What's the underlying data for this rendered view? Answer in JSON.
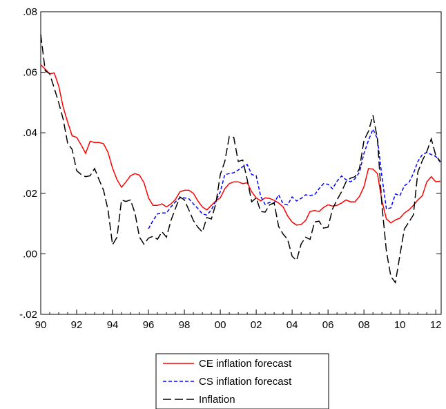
{
  "chart_data": {
    "type": "line",
    "title": "",
    "xlabel": "",
    "ylabel": "",
    "xlim": [
      1990,
      2012.3
    ],
    "ylim": [
      -0.02,
      0.08
    ],
    "x_ticks": [
      1990,
      1992,
      1994,
      1996,
      1998,
      2000,
      2002,
      2004,
      2006,
      2008,
      2010,
      2012
    ],
    "x_tick_labels": [
      "90",
      "92",
      "94",
      "96",
      "98",
      "00",
      "02",
      "04",
      "06",
      "08",
      "10",
      "12"
    ],
    "y_ticks": [
      -0.02,
      0.0,
      0.02,
      0.04,
      0.06,
      0.08
    ],
    "y_tick_labels": [
      "-.02",
      ".00",
      ".02",
      ".04",
      ".06",
      ".08"
    ],
    "grid": false,
    "legend_position": "bottom-center",
    "series": [
      {
        "name": "CE inflation forecast",
        "color": "#ff0000",
        "dash": "solid",
        "points": [
          [
            1990.0,
            0.0625
          ],
          [
            1990.25,
            0.061
          ],
          [
            1990.5,
            0.0595
          ],
          [
            1990.75,
            0.0598
          ],
          [
            1991.0,
            0.0555
          ],
          [
            1991.25,
            0.0485
          ],
          [
            1991.5,
            0.0435
          ],
          [
            1991.75,
            0.039
          ],
          [
            1992.0,
            0.0385
          ],
          [
            1992.25,
            0.036
          ],
          [
            1992.5,
            0.0332
          ],
          [
            1992.75,
            0.0372
          ],
          [
            1993.0,
            0.0368
          ],
          [
            1993.25,
            0.0368
          ],
          [
            1993.5,
            0.0364
          ],
          [
            1993.75,
            0.0335
          ],
          [
            1994.0,
            0.0283
          ],
          [
            1994.25,
            0.0245
          ],
          [
            1994.5,
            0.022
          ],
          [
            1994.75,
            0.0238
          ],
          [
            1995.0,
            0.0258
          ],
          [
            1995.25,
            0.0265
          ],
          [
            1995.5,
            0.026
          ],
          [
            1995.75,
            0.0235
          ],
          [
            1996.0,
            0.0185
          ],
          [
            1996.25,
            0.016
          ],
          [
            1996.5,
            0.016
          ],
          [
            1996.75,
            0.0165
          ],
          [
            1997.0,
            0.0155
          ],
          [
            1997.25,
            0.0165
          ],
          [
            1997.5,
            0.018
          ],
          [
            1997.75,
            0.0205
          ],
          [
            1998.0,
            0.021
          ],
          [
            1998.25,
            0.021
          ],
          [
            1998.5,
            0.02
          ],
          [
            1998.75,
            0.0175
          ],
          [
            1999.0,
            0.0155
          ],
          [
            1999.25,
            0.0145
          ],
          [
            1999.5,
            0.016
          ],
          [
            1999.75,
            0.0175
          ],
          [
            2000.0,
            0.0185
          ],
          [
            2000.25,
            0.0215
          ],
          [
            2000.5,
            0.0232
          ],
          [
            2000.75,
            0.0238
          ],
          [
            2001.0,
            0.0238
          ],
          [
            2001.25,
            0.0232
          ],
          [
            2001.5,
            0.0235
          ],
          [
            2001.75,
            0.0205
          ],
          [
            2002.0,
            0.0185
          ],
          [
            2002.25,
            0.0175
          ],
          [
            2002.5,
            0.0185
          ],
          [
            2002.75,
            0.0183
          ],
          [
            2003.0,
            0.0177
          ],
          [
            2003.25,
            0.0168
          ],
          [
            2003.5,
            0.0155
          ],
          [
            2003.75,
            0.0125
          ],
          [
            2004.0,
            0.0105
          ],
          [
            2004.25,
            0.0095
          ],
          [
            2004.5,
            0.0097
          ],
          [
            2004.75,
            0.011
          ],
          [
            2005.0,
            0.014
          ],
          [
            2005.25,
            0.0143
          ],
          [
            2005.5,
            0.014
          ],
          [
            2005.75,
            0.0153
          ],
          [
            2006.0,
            0.0162
          ],
          [
            2006.25,
            0.0158
          ],
          [
            2006.5,
            0.016
          ],
          [
            2006.75,
            0.0168
          ],
          [
            2007.0,
            0.0178
          ],
          [
            2007.25,
            0.0172
          ],
          [
            2007.5,
            0.0172
          ],
          [
            2007.75,
            0.019
          ],
          [
            2008.0,
            0.0222
          ],
          [
            2008.25,
            0.0282
          ],
          [
            2008.5,
            0.028
          ],
          [
            2008.75,
            0.0265
          ],
          [
            2009.0,
            0.0175
          ],
          [
            2009.25,
            0.0115
          ],
          [
            2009.5,
            0.0102
          ],
          [
            2009.75,
            0.0112
          ],
          [
            2010.0,
            0.0118
          ],
          [
            2010.25,
            0.0135
          ],
          [
            2010.5,
            0.0145
          ],
          [
            2010.75,
            0.016
          ],
          [
            2011.0,
            0.0178
          ],
          [
            2011.25,
            0.0192
          ],
          [
            2011.5,
            0.0238
          ],
          [
            2011.75,
            0.0255
          ],
          [
            2012.0,
            0.0238
          ],
          [
            2012.25,
            0.024
          ]
        ]
      },
      {
        "name": "CS inflation forecast",
        "color": "#0000ff",
        "dash": "short",
        "points": [
          [
            1996.0,
            0.0083
          ],
          [
            1996.25,
            0.011
          ],
          [
            1996.5,
            0.0132
          ],
          [
            1996.75,
            0.0135
          ],
          [
            1997.0,
            0.0135
          ],
          [
            1997.25,
            0.0155
          ],
          [
            1997.5,
            0.0172
          ],
          [
            1997.75,
            0.0185
          ],
          [
            1998.0,
            0.0185
          ],
          [
            1998.25,
            0.0182
          ],
          [
            1998.5,
            0.0165
          ],
          [
            1998.75,
            0.015
          ],
          [
            1999.0,
            0.0132
          ],
          [
            1999.25,
            0.0128
          ],
          [
            1999.5,
            0.0145
          ],
          [
            1999.75,
            0.0175
          ],
          [
            2000.0,
            0.0205
          ],
          [
            2000.25,
            0.0262
          ],
          [
            2000.5,
            0.0265
          ],
          [
            2000.75,
            0.0268
          ],
          [
            2001.0,
            0.0277
          ],
          [
            2001.25,
            0.0288
          ],
          [
            2001.5,
            0.0295
          ],
          [
            2001.75,
            0.0262
          ],
          [
            2002.0,
            0.0258
          ],
          [
            2002.25,
            0.019
          ],
          [
            2002.5,
            0.0163
          ],
          [
            2002.75,
            0.017
          ],
          [
            2003.0,
            0.0168
          ],
          [
            2003.25,
            0.0195
          ],
          [
            2003.5,
            0.0165
          ],
          [
            2003.75,
            0.0162
          ],
          [
            2004.0,
            0.0188
          ],
          [
            2004.25,
            0.0175
          ],
          [
            2004.5,
            0.0183
          ],
          [
            2004.75,
            0.0195
          ],
          [
            2005.0,
            0.0193
          ],
          [
            2005.25,
            0.0195
          ],
          [
            2005.5,
            0.0215
          ],
          [
            2005.75,
            0.0232
          ],
          [
            2006.0,
            0.023
          ],
          [
            2006.25,
            0.0215
          ],
          [
            2006.5,
            0.024
          ],
          [
            2006.75,
            0.0257
          ],
          [
            2007.0,
            0.0245
          ],
          [
            2007.25,
            0.0238
          ],
          [
            2007.5,
            0.0248
          ],
          [
            2007.75,
            0.027
          ],
          [
            2008.0,
            0.0332
          ],
          [
            2008.25,
            0.0375
          ],
          [
            2008.5,
            0.0412
          ],
          [
            2008.75,
            0.038
          ],
          [
            2009.0,
            0.0255
          ],
          [
            2009.25,
            0.0148
          ],
          [
            2009.5,
            0.0152
          ],
          [
            2009.75,
            0.0198
          ],
          [
            2010.0,
            0.0192
          ],
          [
            2010.25,
            0.0225
          ],
          [
            2010.5,
            0.0235
          ],
          [
            2010.75,
            0.0265
          ],
          [
            2011.0,
            0.0305
          ],
          [
            2011.25,
            0.0328
          ],
          [
            2011.5,
            0.0335
          ],
          [
            2011.75,
            0.0328
          ],
          [
            2012.0,
            0.0322
          ],
          [
            2012.25,
            0.0303
          ]
        ]
      },
      {
        "name": "Inflation",
        "color": "#000000",
        "dash": "long",
        "points": [
          [
            1990.0,
            0.0725
          ],
          [
            1990.25,
            0.0605
          ],
          [
            1990.5,
            0.0595
          ],
          [
            1990.75,
            0.0548
          ],
          [
            1991.0,
            0.05
          ],
          [
            1991.25,
            0.0445
          ],
          [
            1991.5,
            0.0365
          ],
          [
            1991.75,
            0.0345
          ],
          [
            1992.0,
            0.0275
          ],
          [
            1992.25,
            0.0262
          ],
          [
            1992.5,
            0.0255
          ],
          [
            1992.75,
            0.0258
          ],
          [
            1993.0,
            0.0282
          ],
          [
            1993.25,
            0.0245
          ],
          [
            1993.5,
            0.021
          ],
          [
            1993.75,
            0.0145
          ],
          [
            1994.0,
            0.003
          ],
          [
            1994.25,
            0.0055
          ],
          [
            1994.5,
            0.0178
          ],
          [
            1994.75,
            0.0173
          ],
          [
            1995.0,
            0.0178
          ],
          [
            1995.25,
            0.0135
          ],
          [
            1995.5,
            0.0055
          ],
          [
            1995.75,
            0.0032
          ],
          [
            1996.0,
            0.0052
          ],
          [
            1996.25,
            0.0058
          ],
          [
            1996.5,
            0.0048
          ],
          [
            1996.75,
            0.0073
          ],
          [
            1997.0,
            0.0055
          ],
          [
            1997.25,
            0.011
          ],
          [
            1997.5,
            0.015
          ],
          [
            1997.75,
            0.0188
          ],
          [
            1998.0,
            0.0178
          ],
          [
            1998.25,
            0.0145
          ],
          [
            1998.5,
            0.011
          ],
          [
            1998.75,
            0.0088
          ],
          [
            1999.0,
            0.0072
          ],
          [
            1999.25,
            0.012
          ],
          [
            1999.5,
            0.0115
          ],
          [
            1999.75,
            0.0165
          ],
          [
            2000.0,
            0.0262
          ],
          [
            2000.25,
            0.0305
          ],
          [
            2000.5,
            0.0388
          ],
          [
            2000.75,
            0.0385
          ],
          [
            2001.0,
            0.0305
          ],
          [
            2001.25,
            0.031
          ],
          [
            2001.5,
            0.0245
          ],
          [
            2001.75,
            0.0172
          ],
          [
            2002.0,
            0.0185
          ],
          [
            2002.25,
            0.014
          ],
          [
            2002.5,
            0.0138
          ],
          [
            2002.75,
            0.0162
          ],
          [
            2003.0,
            0.0168
          ],
          [
            2003.25,
            0.009
          ],
          [
            2003.5,
            0.0065
          ],
          [
            2003.75,
            0.0048
          ],
          [
            2004.0,
            -0.0008
          ],
          [
            2004.25,
            -0.0022
          ],
          [
            2004.5,
            0.0032
          ],
          [
            2004.75,
            0.0055
          ],
          [
            2005.0,
            0.0048
          ],
          [
            2005.25,
            0.0105
          ],
          [
            2005.5,
            0.0108
          ],
          [
            2005.75,
            0.0085
          ],
          [
            2006.0,
            0.0088
          ],
          [
            2006.25,
            0.0148
          ],
          [
            2006.5,
            0.0178
          ],
          [
            2006.75,
            0.0205
          ],
          [
            2007.0,
            0.0238
          ],
          [
            2007.25,
            0.025
          ],
          [
            2007.5,
            0.0255
          ],
          [
            2007.75,
            0.0282
          ],
          [
            2008.0,
            0.0375
          ],
          [
            2008.25,
            0.0405
          ],
          [
            2008.5,
            0.0458
          ],
          [
            2008.75,
            0.038
          ],
          [
            2009.0,
            0.016
          ],
          [
            2009.25,
            0.0008
          ],
          [
            2009.5,
            -0.0075
          ],
          [
            2009.75,
            -0.0095
          ],
          [
            2010.0,
            -0.0005
          ],
          [
            2010.25,
            0.0082
          ],
          [
            2010.5,
            0.0105
          ],
          [
            2010.75,
            0.0128
          ],
          [
            2011.0,
            0.027
          ],
          [
            2011.25,
            0.0308
          ],
          [
            2011.5,
            0.0338
          ],
          [
            2011.75,
            0.038
          ],
          [
            2012.0,
            0.0325
          ],
          [
            2012.25,
            0.0305
          ]
        ]
      }
    ]
  }
}
